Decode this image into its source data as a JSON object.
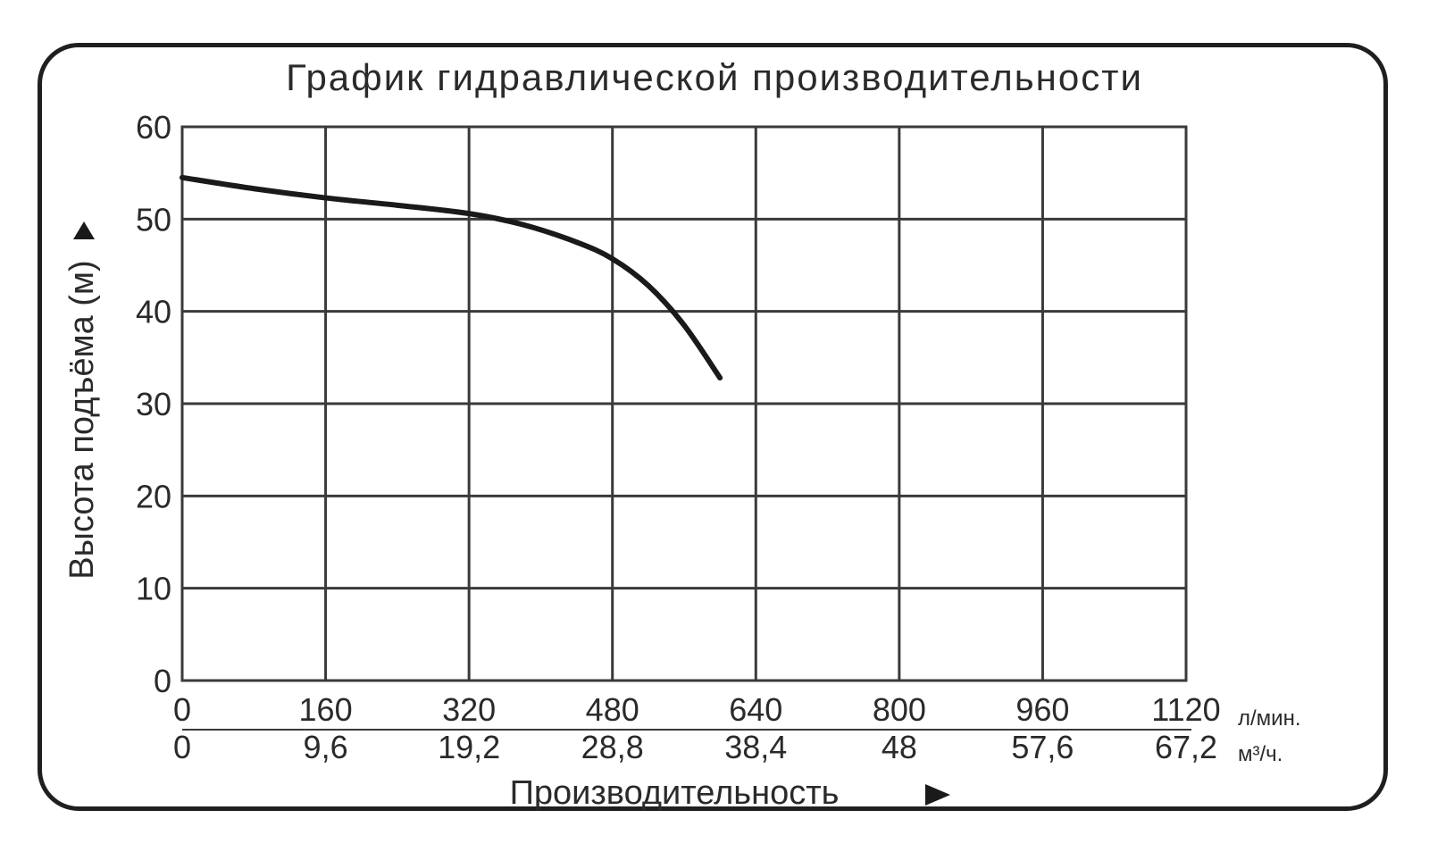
{
  "chart_data": {
    "type": "line",
    "title": "График гидравлической производительности",
    "ylabel": "Высота подъёма (м)",
    "xlabel": "Производительность",
    "x_unit_primary": "л/мин.",
    "x_unit_secondary": "м³/ч.",
    "ylim": [
      0,
      60
    ],
    "xlim": [
      0,
      1120
    ],
    "grid": true,
    "y_ticks": [
      "0",
      "10",
      "20",
      "30",
      "40",
      "50",
      "60"
    ],
    "x_ticks_primary": [
      "0",
      "160",
      "320",
      "480",
      "640",
      "800",
      "960",
      "1120"
    ],
    "x_ticks_secondary": [
      "0",
      "9,6",
      "19,2",
      "28,8",
      "38,4",
      "48",
      "57,6",
      "67,2"
    ],
    "series": [
      {
        "x": [
          0,
          80,
          160,
          240,
          320,
          380,
          440,
          480,
          520,
          560,
          600
        ],
        "y": [
          54.5,
          53.3,
          52.3,
          51.5,
          50.6,
          49.4,
          47.5,
          45.7,
          42.8,
          38.5,
          32.8
        ]
      }
    ],
    "colors": {
      "line": "#1a1a1a",
      "grid": "#3a3a3a",
      "frame": "#1f1f1f"
    }
  }
}
